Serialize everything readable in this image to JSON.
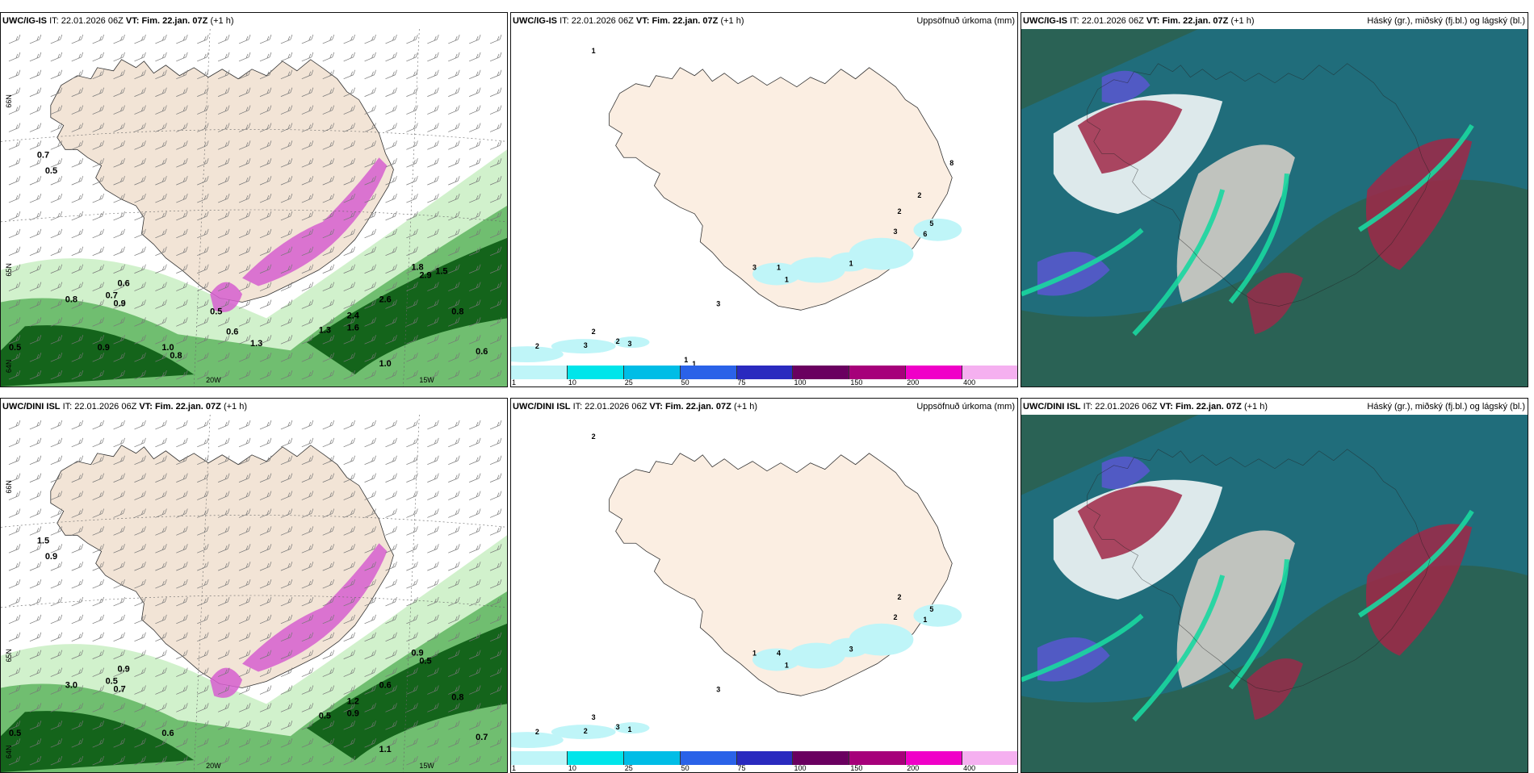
{
  "rows": [
    {
      "model": "UWC/IG-IS",
      "it_label": "IT:",
      "it_value": "22.01.2026 06Z",
      "vt_label": "VT:",
      "vt_value": "Fim. 22.jan. 07Z",
      "lead": "(+1 h)",
      "precip_title": "Uppsöfnuð úrkoma (mm)",
      "cloud_title": "Háský (gr.), miðský (fj.bl.) og lágský (bl.)",
      "wind_labels": [
        "0.7",
        "0.5",
        "0.6",
        "0.7",
        "0.8",
        "0.9",
        "1.0",
        "0.5",
        "2.4",
        "1.6",
        "1.3",
        "2.6",
        "2.9",
        "1.8",
        "0.8",
        "0.6",
        "1.0",
        "0.5",
        "0.6",
        "0.8",
        "0.9",
        "1.3",
        "1.5"
      ],
      "axis_labels": [
        "66N",
        "65N",
        "64N",
        "20W",
        "15W"
      ],
      "precip_labels": [
        "1",
        "2",
        "2",
        "3",
        "2",
        "3",
        "3",
        "1",
        "1",
        "3",
        "1",
        "3",
        "2",
        "5",
        "6",
        "8",
        "2",
        "1",
        "1"
      ]
    },
    {
      "model": "UWC/DINI ISL",
      "it_label": "IT:",
      "it_value": "22.01.2026 06Z",
      "vt_label": "VT:",
      "vt_value": "Fim. 22.jan. 07Z",
      "lead": "(+1 h)",
      "precip_title": "Uppsöfnuð úrkoma (mm)",
      "cloud_title": "Háský (gr.), miðský (fj.bl.) og lágský (bl.)",
      "wind_labels": [
        "1.5",
        "0.9",
        "0.9",
        "0.5",
        "3.0",
        "0.7",
        "0.6",
        "0.5",
        "1.2",
        "0.9",
        "0.5",
        "0.6",
        "0.5",
        "0.9",
        "0.8",
        "0.7",
        "1.1"
      ],
      "axis_labels": [
        "66N",
        "65N",
        "64N",
        "20W",
        "15W"
      ],
      "precip_labels": [
        "2",
        "3",
        "2",
        "2",
        "3",
        "1",
        "3",
        "4",
        "1",
        "1",
        "3",
        "2",
        "2",
        "5",
        "1"
      ]
    }
  ],
  "colorbar": {
    "ticks": [
      "1",
      "10",
      "25",
      "50",
      "75",
      "100",
      "150",
      "200",
      "400"
    ],
    "colors": [
      "#bff5f8",
      "#00e5ea",
      "#00bde6",
      "#2a62e8",
      "#2a2abf",
      "#6a0060",
      "#a6007a",
      "#f000c8",
      "#f5b0f0"
    ]
  },
  "colors": {
    "land": "#f2e4d6",
    "land_precip": "#fbeee2",
    "sea": "#ffffff",
    "precip_light": "#ccf0c6",
    "precip_mid": "#5fb55f",
    "precip_dark": "#0a5a12",
    "snow_pink": "#d65fcf",
    "cloud_teal": "#1f6f80",
    "cloud_dark": "#2a6255",
    "cloud_green": "#19d7a0",
    "cloud_red": "#a02848",
    "cloud_blue": "#5b57d1"
  }
}
